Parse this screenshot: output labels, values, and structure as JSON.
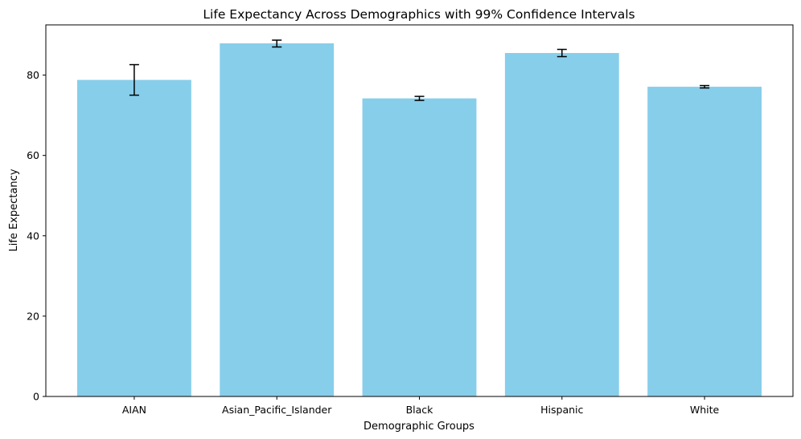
{
  "chart_data": {
    "type": "bar",
    "title": "Life Expectancy Across Demographics with 99% Confidence Intervals",
    "xlabel": "Demographic Groups",
    "ylabel": "Life Expectancy",
    "categories": [
      "AIAN",
      "Asian_Pacific_Islander",
      "Black",
      "Hispanic",
      "White"
    ],
    "values": [
      78.8,
      87.9,
      74.2,
      85.5,
      77.1
    ],
    "ci_lower": [
      75.0,
      87.0,
      73.7,
      84.6,
      76.8
    ],
    "ci_upper": [
      82.6,
      88.7,
      74.7,
      86.4,
      77.4
    ],
    "ylim": [
      0,
      92.5
    ],
    "yticks": [
      0,
      20,
      40,
      60,
      80
    ],
    "grid": false,
    "bar_color": "#87CEEB",
    "error_bar_color": "#000000"
  }
}
